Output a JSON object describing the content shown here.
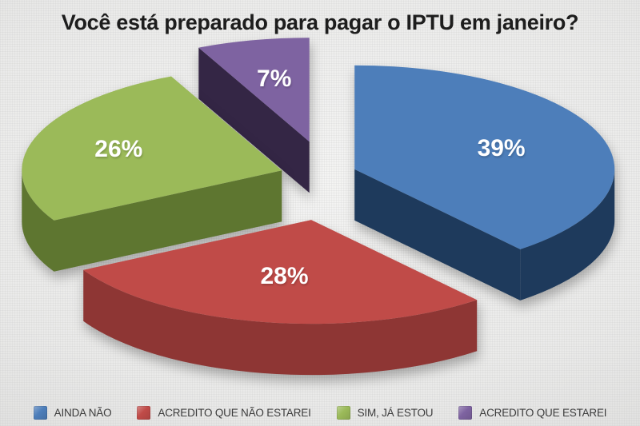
{
  "title": "Você está preparado para pagar o IPTU em janeiro?",
  "chart_data": {
    "type": "pie",
    "style": "3d-exploded",
    "title": "Você está preparado para pagar o IPTU em janeiro?",
    "value_suffix": "%",
    "start_angle_deg": 0,
    "direction": "clockwise",
    "legend_position": "bottom",
    "label_color": "#ffffff",
    "title_color": "#1d1d1d",
    "legend_text_color": "#3c3c3c",
    "background_color": "#e8e8e7",
    "slices": [
      {
        "label": "AINDA NÃO",
        "value": 39,
        "color": "#4d7eba",
        "side_color": "#1e3a5c"
      },
      {
        "label": "ACREDITO QUE NÃO ESTAREI",
        "value": 28,
        "color": "#c04b48",
        "side_color": "#8e3634"
      },
      {
        "label": "SIM, JÁ ESTOU",
        "value": 26,
        "color": "#9bba59",
        "side_color": "#5e7630"
      },
      {
        "label": "ACREDITO QUE ESTAREI",
        "value": 7,
        "color": "#7e63a1",
        "side_color": "#342645"
      }
    ]
  }
}
